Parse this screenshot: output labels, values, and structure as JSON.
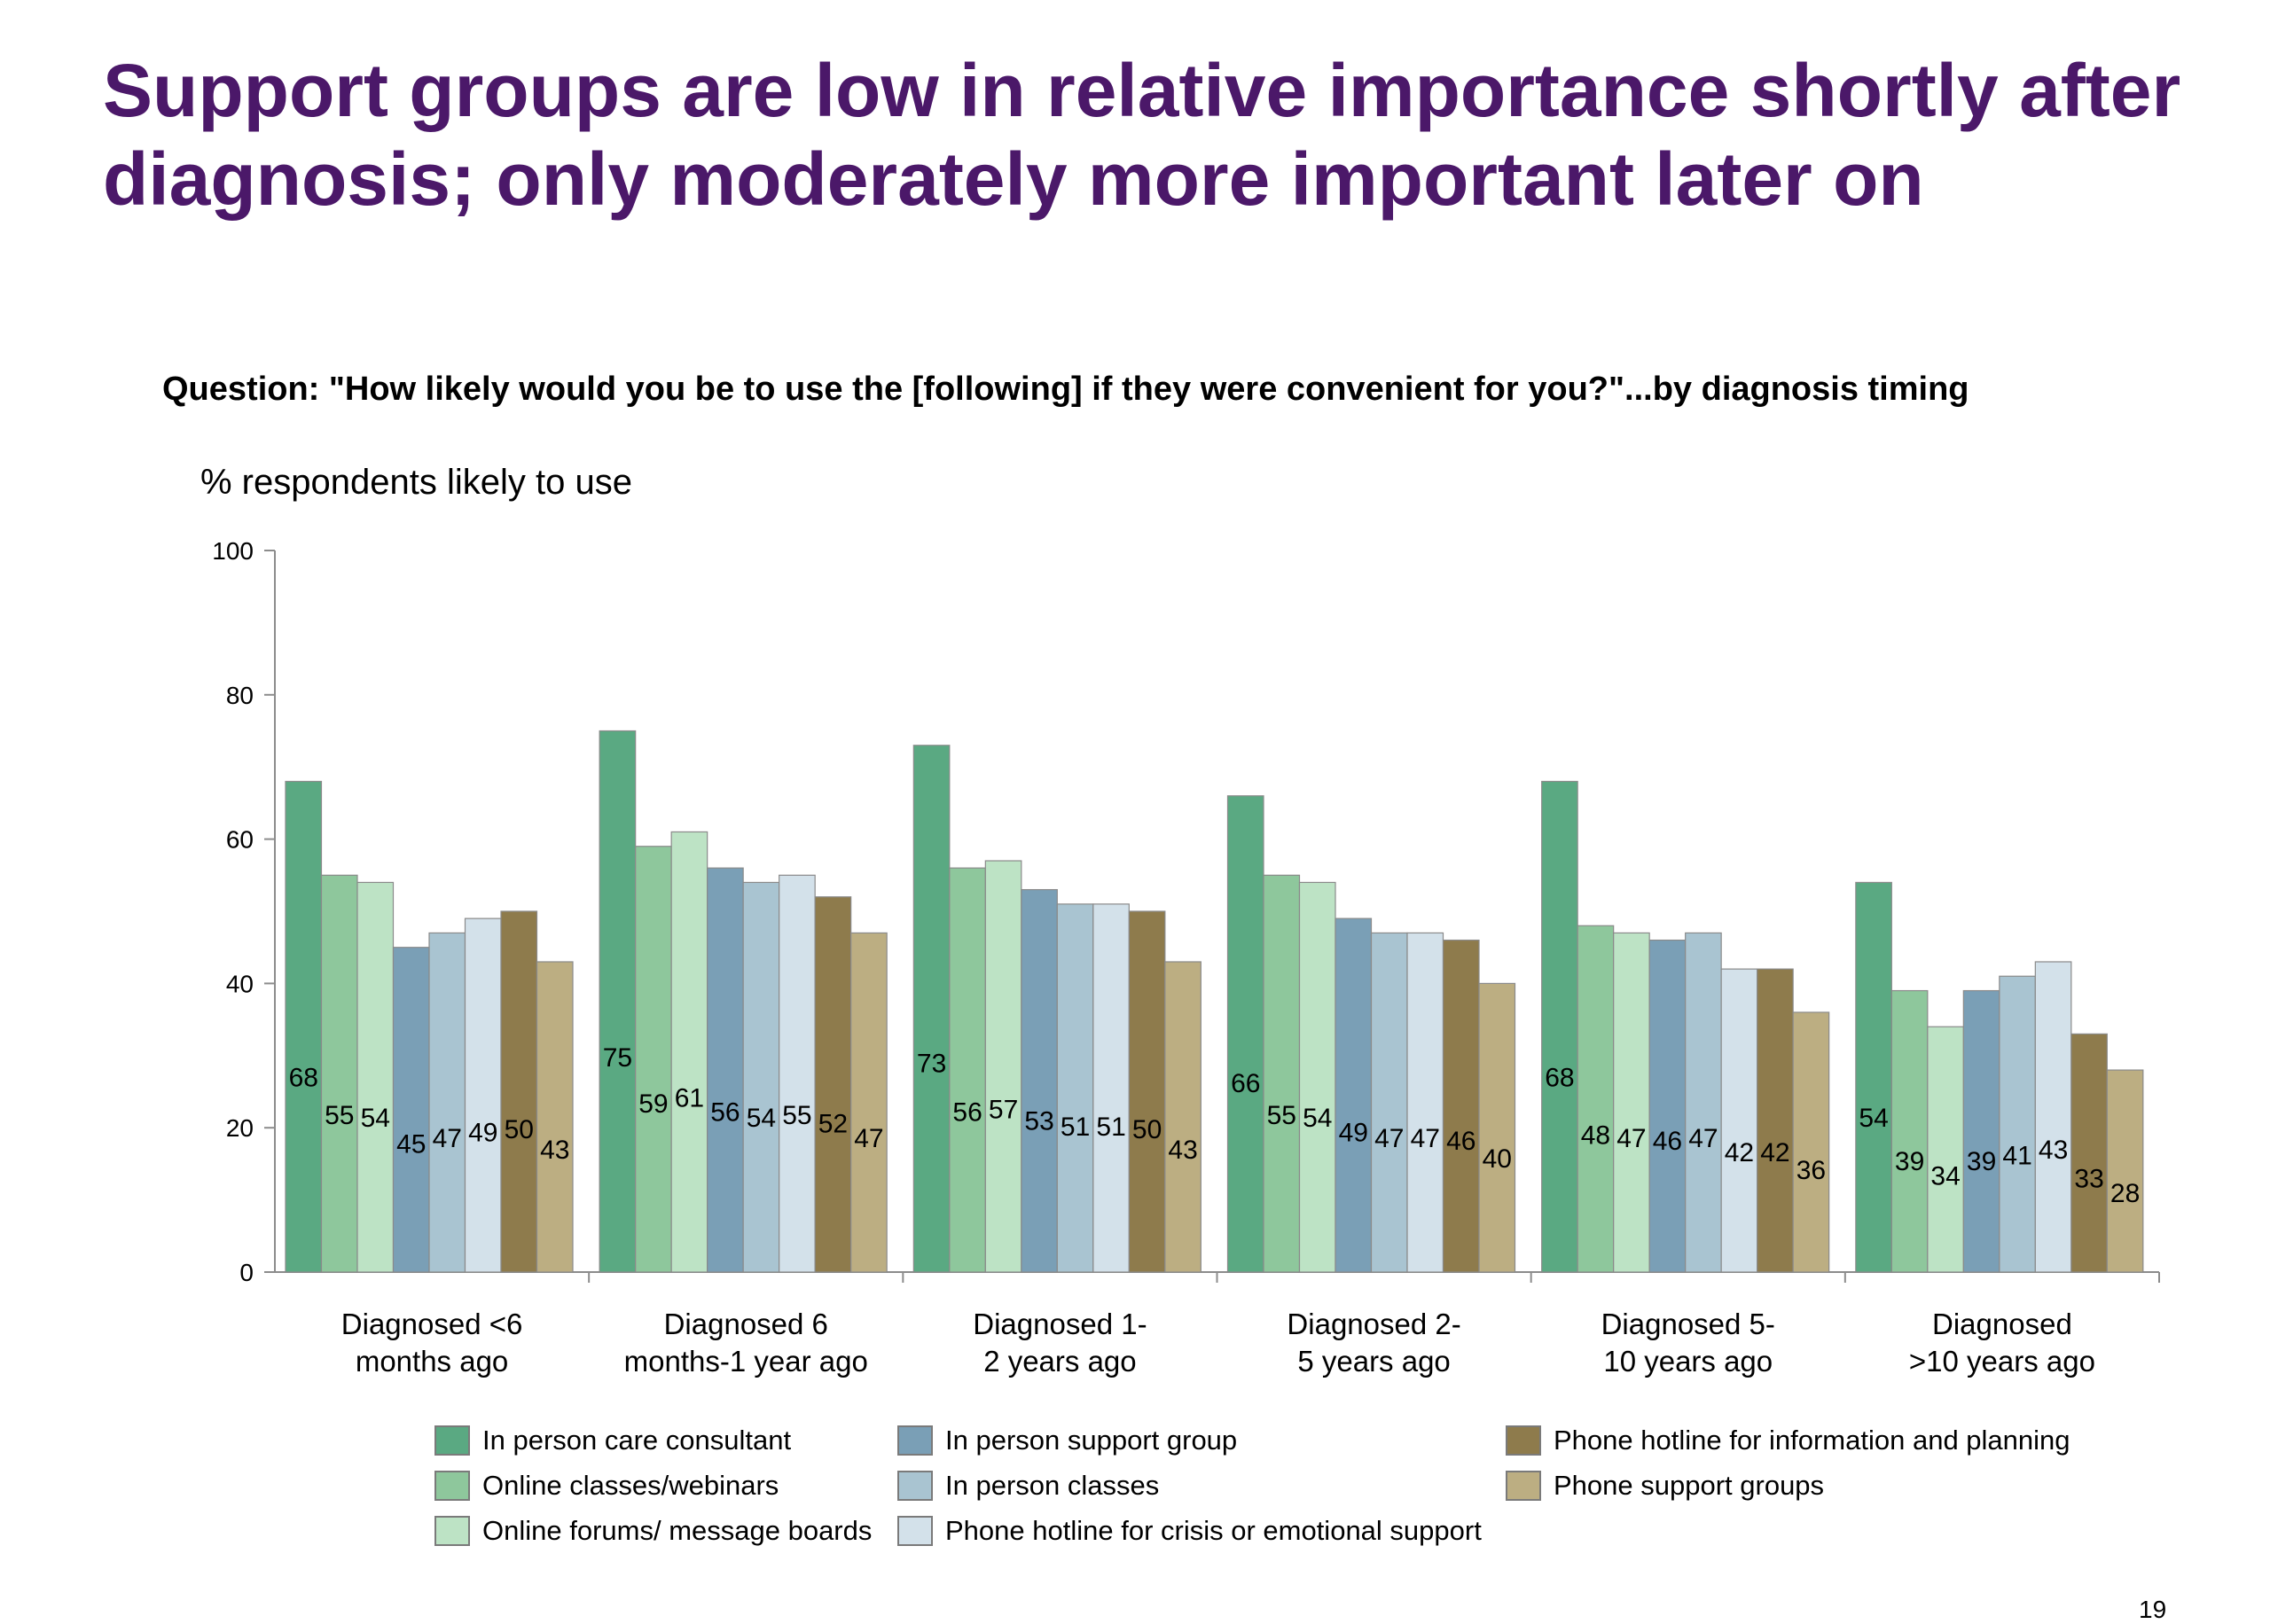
{
  "slide": {
    "title": "Support groups are low in relative importance shortly after diagnosis; only moderately more important later on",
    "question": "Question: \"How likely would you be to use the [following] if they were convenient for you?\"...by diagnosis timing",
    "page_number": "19"
  },
  "chart_data": {
    "type": "bar",
    "title": "",
    "xlabel": "",
    "ylabel": "% respondents likely to use",
    "ylim": [
      0,
      100
    ],
    "yticks": [
      0,
      20,
      40,
      60,
      80,
      100
    ],
    "grid": false,
    "legend_position": "bottom",
    "categories": [
      [
        "Diagnosed <6",
        "months ago"
      ],
      [
        "Diagnosed 6",
        "months-1 year ago"
      ],
      [
        "Diagnosed 1-",
        "2 years ago"
      ],
      [
        "Diagnosed 2-",
        "5 years ago"
      ],
      [
        "Diagnosed 5-",
        "10 years ago"
      ],
      [
        "Diagnosed",
        ">10 years ago"
      ]
    ],
    "series": [
      {
        "name": "In person care consultant",
        "color": "#5aa982",
        "values": [
          68,
          75,
          73,
          66,
          68,
          54
        ]
      },
      {
        "name": "Online classes/webinars",
        "color": "#8ec79c",
        "values": [
          55,
          59,
          56,
          55,
          48,
          39
        ]
      },
      {
        "name": "Online forums/ message boards",
        "color": "#bde3c5",
        "values": [
          54,
          61,
          57,
          54,
          47,
          34
        ]
      },
      {
        "name": "In person support group",
        "color": "#7a9fb6",
        "values": [
          45,
          56,
          53,
          49,
          46,
          39
        ]
      },
      {
        "name": "In person classes",
        "color": "#a9c4d1",
        "values": [
          47,
          54,
          51,
          47,
          47,
          41
        ]
      },
      {
        "name": "Phone hotline for crisis or emotional support",
        "color": "#d3e1ea",
        "values": [
          49,
          55,
          51,
          47,
          42,
          43
        ]
      },
      {
        "name": "Phone hotline for information and planning",
        "color": "#8e7b4c",
        "values": [
          50,
          52,
          50,
          46,
          42,
          33
        ]
      },
      {
        "name": "Phone support groups",
        "color": "#bcae82",
        "values": [
          43,
          47,
          43,
          40,
          36,
          28
        ]
      }
    ]
  }
}
